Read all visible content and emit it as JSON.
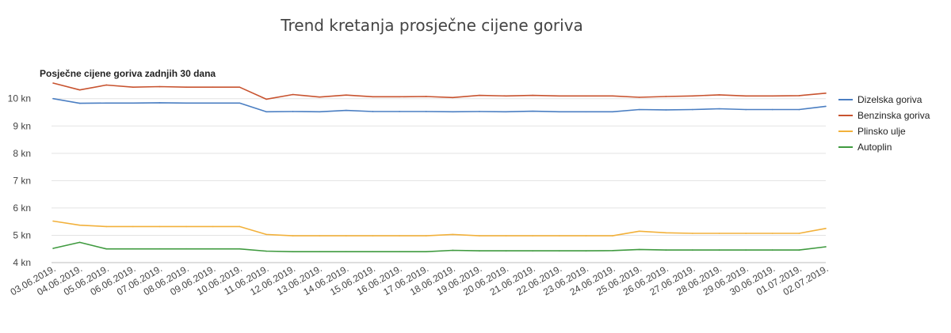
{
  "page": {
    "title": "Trend kretanja prosječne cijene goriva"
  },
  "chart_data": {
    "type": "line",
    "title": "Trend kretanja prosječne cijene goriva",
    "subtitle": "Posječne cijene goriva zadnjih 30 dana",
    "xlabel": "",
    "ylabel": "",
    "ylim": [
      4,
      10.6
    ],
    "yticks": [
      4,
      5,
      6,
      7,
      8,
      9,
      10
    ],
    "ytick_labels": [
      "4 kn",
      "5 kn",
      "6 kn",
      "7 kn",
      "8 kn",
      "9 kn",
      "10 kn"
    ],
    "grid": true,
    "legend_position": "right",
    "categories": [
      "03.06.2019.",
      "04.06.2019.",
      "05.06.2019.",
      "06.06.2019.",
      "07.06.2019.",
      "08.06.2019.",
      "09.06.2019.",
      "10.06.2019.",
      "11.06.2019.",
      "12.06.2019.",
      "13.06.2019.",
      "14.06.2019.",
      "15.06.2019.",
      "16.06.2019.",
      "17.06.2019.",
      "18.06.2019.",
      "19.06.2019.",
      "20.06.2019.",
      "21.06.2019.",
      "22.06.2019.",
      "23.06.2019.",
      "24.06.2019.",
      "25.06.2019.",
      "26.06.2019.",
      "27.06.2019.",
      "28.06.2019.",
      "29.06.2019.",
      "30.06.2019.",
      "01.07.2019.",
      "02.07.2019."
    ],
    "series": [
      {
        "name": "Dizelska goriva",
        "color": "#4a7ec2",
        "values": [
          10.0,
          9.83,
          9.84,
          9.84,
          9.85,
          9.84,
          9.84,
          9.84,
          9.52,
          9.53,
          9.52,
          9.57,
          9.53,
          9.53,
          9.53,
          9.52,
          9.53,
          9.52,
          9.54,
          9.52,
          9.52,
          9.52,
          9.6,
          9.59,
          9.6,
          9.63,
          9.6,
          9.6,
          9.6,
          9.72
        ]
      },
      {
        "name": "Benzinska goriva",
        "color": "#c8532f",
        "values": [
          10.57,
          10.32,
          10.5,
          10.42,
          10.44,
          10.42,
          10.42,
          10.42,
          9.98,
          10.15,
          10.06,
          10.13,
          10.07,
          10.07,
          10.08,
          10.04,
          10.12,
          10.1,
          10.12,
          10.1,
          10.1,
          10.1,
          10.05,
          10.08,
          10.1,
          10.14,
          10.1,
          10.1,
          10.11,
          10.2
        ]
      },
      {
        "name": "Plinsko ulje",
        "color": "#f2b13b",
        "values": [
          5.52,
          5.37,
          5.32,
          5.32,
          5.32,
          5.32,
          5.32,
          5.32,
          5.03,
          4.98,
          4.98,
          4.98,
          4.98,
          4.98,
          4.98,
          5.03,
          4.98,
          4.98,
          4.98,
          4.98,
          4.98,
          4.98,
          5.15,
          5.09,
          5.07,
          5.07,
          5.07,
          5.07,
          5.07,
          5.25
        ]
      },
      {
        "name": "Autoplin",
        "color": "#3f9a3f",
        "values": [
          4.52,
          4.74,
          4.5,
          4.5,
          4.5,
          4.5,
          4.5,
          4.5,
          4.42,
          4.4,
          4.4,
          4.4,
          4.4,
          4.4,
          4.4,
          4.45,
          4.43,
          4.43,
          4.43,
          4.43,
          4.43,
          4.44,
          4.48,
          4.46,
          4.46,
          4.46,
          4.46,
          4.46,
          4.46,
          4.58
        ]
      }
    ]
  }
}
